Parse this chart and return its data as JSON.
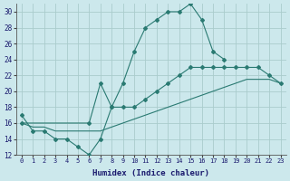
{
  "xlabel": "Humidex (Indice chaleur)",
  "bg_color": "#cce8ec",
  "grid_color": "#aacccc",
  "line_color": "#2a7a72",
  "xlim": [
    -0.5,
    23.5
  ],
  "ylim": [
    12,
    31
  ],
  "xticks": [
    0,
    1,
    2,
    3,
    4,
    5,
    6,
    7,
    8,
    9,
    10,
    11,
    12,
    13,
    14,
    15,
    16,
    17,
    18,
    19,
    20,
    21,
    22,
    23
  ],
  "yticks": [
    12,
    14,
    16,
    18,
    20,
    22,
    24,
    26,
    28,
    30
  ],
  "curve1_x": [
    0,
    1,
    2,
    3,
    4,
    5,
    6,
    7,
    8,
    9,
    10,
    11,
    12,
    13,
    14,
    15,
    16,
    17,
    18
  ],
  "curve1_y": [
    17,
    15,
    15,
    14,
    14,
    13,
    12,
    14,
    18,
    21,
    25,
    28,
    29,
    30,
    30,
    31,
    29,
    25,
    24
  ],
  "curve2_x": [
    0,
    6,
    7,
    8,
    9,
    10,
    11,
    12,
    13,
    14,
    15,
    16,
    17,
    18,
    19,
    20,
    21,
    22,
    23
  ],
  "curve2_y": [
    16,
    16,
    21,
    18,
    18,
    18,
    19,
    20,
    21,
    22,
    23,
    23,
    23,
    23,
    23,
    23,
    23,
    22,
    21
  ],
  "curve3_x": [
    0,
    1,
    2,
    3,
    4,
    5,
    6,
    7,
    8,
    9,
    10,
    11,
    12,
    13,
    14,
    15,
    16,
    17,
    18,
    19,
    20,
    21,
    22,
    23
  ],
  "curve3_y": [
    16,
    15.5,
    15.5,
    15,
    15,
    15,
    15,
    15,
    15.5,
    16,
    16.5,
    17,
    17.5,
    18,
    18.5,
    19,
    19.5,
    20,
    20.5,
    21,
    21.5,
    21.5,
    21.5,
    21
  ]
}
